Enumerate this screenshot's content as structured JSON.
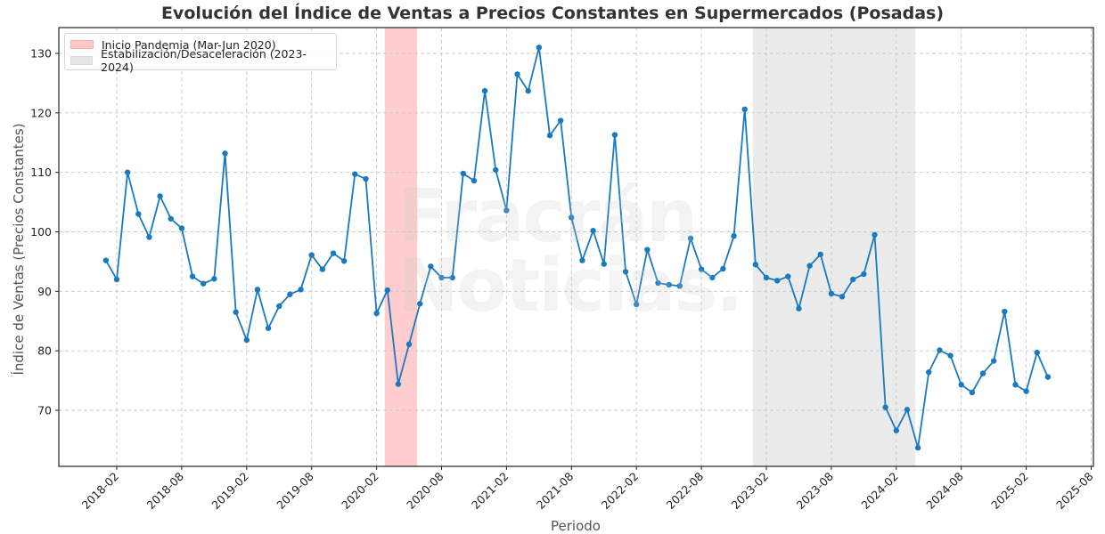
{
  "title": "Evolución del Índice de Ventas a Precios Constantes en Supermercados (Posadas)",
  "watermark": {
    "line1": "Fracrán",
    "line2": "Noticias."
  },
  "legend": [
    {
      "label": "Inicio Pandemia (Mar-Jun 2020)",
      "color": "#ffc8c8"
    },
    {
      "label": "Estabilización/Desaceleración (2023-2024)",
      "color": "#e6e6e6"
    }
  ],
  "colors": {
    "line": "#1a7abf",
    "pandemic_band": "#ffcaca",
    "stabilization_band": "#ebebeb",
    "grid": "#c8c8c8"
  },
  "chart_data": {
    "type": "line",
    "title": "Evolución del Índice de Ventas a Precios Constantes en Supermercados (Posadas)",
    "xlabel": "Periodo",
    "ylabel": "Índice de Ventas (Precios Constantes)",
    "ylim": [
      60,
      134
    ],
    "yticks": [
      70,
      80,
      90,
      100,
      110,
      120,
      130
    ],
    "xticks": [
      "2018-02",
      "2018-08",
      "2019-02",
      "2019-08",
      "2020-02",
      "2020-08",
      "2021-02",
      "2021-08",
      "2022-02",
      "2022-08",
      "2023-02",
      "2023-08",
      "2024-02",
      "2024-08",
      "2025-02",
      "2025-08"
    ],
    "grid": true,
    "legend_position": "upper left",
    "x_start": "2018-01",
    "x_end": "2025-04",
    "frequency": "monthly",
    "series": [
      {
        "name": "Índice de Ventas",
        "values": [
          95.2,
          92.0,
          110.0,
          103.0,
          99.1,
          106.0,
          102.2,
          100.6,
          92.5,
          91.3,
          92.1,
          113.2,
          86.5,
          81.8,
          90.3,
          83.8,
          87.5,
          89.5,
          90.3,
          96.1,
          93.7,
          96.4,
          95.1,
          109.7,
          108.9,
          86.3,
          90.2,
          74.4,
          81.1,
          87.9,
          94.2,
          92.3,
          92.3,
          109.8,
          108.6,
          123.7,
          110.4,
          103.6,
          126.5,
          123.7,
          131.0,
          116.2,
          118.7,
          102.4,
          95.2,
          100.2,
          94.6,
          116.3,
          93.3,
          87.8,
          97.0,
          91.4,
          91.1,
          90.9,
          98.9,
          93.7,
          92.3,
          93.8,
          99.3,
          120.6,
          94.5,
          92.3,
          91.8,
          92.5,
          87.1,
          94.3,
          96.2,
          89.6,
          89.1,
          92.0,
          92.9,
          99.5,
          70.5,
          66.6,
          70.1,
          63.7,
          76.4,
          80.1,
          79.2,
          74.3,
          73.0,
          76.2,
          78.3,
          86.6,
          74.3,
          73.2,
          79.7,
          75.6
        ]
      }
    ],
    "shaded_regions": [
      {
        "label": "Inicio Pandemia (Mar-Jun 2020)",
        "start": "2020-03",
        "end": "2020-06",
        "color": "#ffc8c8"
      },
      {
        "label": "Estabilización/Desaceleración (2023-2024)",
        "start": "2023-01",
        "end": "2024-04",
        "color": "#e6e6e6"
      }
    ]
  }
}
